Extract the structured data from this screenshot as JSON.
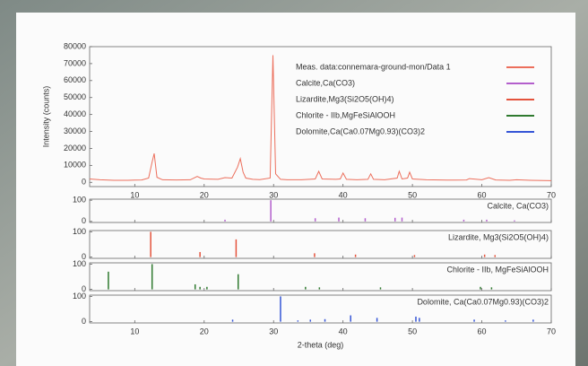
{
  "chart_data": [
    {
      "type": "line",
      "ylabel": "Intensity (counts)",
      "xlabel": "2-theta (deg)",
      "xlim": [
        3.5,
        70
      ],
      "ylim": [
        -2500,
        80000
      ],
      "xticks": [
        10,
        20,
        30,
        40,
        50,
        60,
        70
      ],
      "yticks": [
        0,
        10000,
        20000,
        30000,
        40000,
        50000,
        60000,
        70000,
        80000
      ],
      "x": [
        3.5,
        5,
        7,
        9,
        10,
        11,
        12,
        12.5,
        12.8,
        13.2,
        14,
        16,
        18,
        19,
        19.5,
        20,
        22,
        23,
        24,
        24.8,
        25.2,
        25.6,
        26,
        27,
        28,
        29.5,
        29.9,
        30.3,
        31,
        32,
        34,
        36,
        36.5,
        37,
        39,
        39.6,
        40,
        40.5,
        42,
        43.6,
        44,
        44.4,
        46,
        47.8,
        48.1,
        48.5,
        49.3,
        49.6,
        50,
        52,
        55,
        57.8,
        58.2,
        60,
        61,
        62,
        64,
        65,
        67,
        70
      ],
      "series": [
        {
          "name": "Meas. data:connemara-ground-mon/Data 1",
          "color": "#ec6f5c",
          "values": [
            2000,
            1500,
            1200,
            1200,
            1300,
            1400,
            2500,
            12000,
            17000,
            3000,
            1500,
            1400,
            1500,
            3500,
            2500,
            2000,
            1800,
            2800,
            2500,
            9000,
            14000,
            6000,
            2500,
            1800,
            1600,
            2500,
            75000,
            5000,
            1800,
            1500,
            1500,
            2000,
            6500,
            2000,
            1800,
            2000,
            5500,
            1800,
            1500,
            1800,
            5000,
            1800,
            1500,
            2500,
            6500,
            2000,
            2500,
            6000,
            2000,
            1500,
            1300,
            1400,
            2200,
            1500,
            2800,
            1400,
            1200,
            1500,
            1200,
            1000
          ]
        },
        {
          "name": "Calcite,Ca(CO3)",
          "color": "#b35fcc"
        },
        {
          "name": "Lizardite,Mg3(Si2O5(OH)4)",
          "color": "#e4533c"
        },
        {
          "name": "Chlorite - IIb,MgFeSiAlOOH",
          "color": "#2f7a2f"
        },
        {
          "name": "Dolomite,Ca(Ca0.07Mg0.93)(CO3)2",
          "color": "#3555d6"
        }
      ]
    },
    {
      "type": "stick",
      "name": "Calcite, Ca(CO3)",
      "color": "#b35fcc",
      "xlim": [
        3.5,
        70
      ],
      "ylim": [
        -5,
        105
      ],
      "xticks": [
        10,
        20,
        30,
        40,
        50,
        60,
        70
      ],
      "yticks": [
        0,
        100
      ],
      "xtick_labels": false,
      "x": [
        23,
        29.6,
        36,
        39.4,
        43.2,
        47.5,
        48.5,
        57.4,
        60.7,
        64.7
      ],
      "values": [
        8,
        100,
        15,
        18,
        15,
        17,
        18,
        8,
        8,
        5
      ]
    },
    {
      "type": "stick",
      "name": "Lizardite, Mg3(Si2O5(OH)4)",
      "color": "#e4533c",
      "xlim": [
        3.5,
        70
      ],
      "ylim": [
        -5,
        105
      ],
      "xticks": [
        10,
        20,
        30,
        40,
        50,
        60,
        70
      ],
      "yticks": [
        0,
        100
      ],
      "xtick_labels": false,
      "x": [
        12.3,
        19.4,
        24.6,
        35.9,
        41.8,
        50.3,
        60.4,
        61.9
      ],
      "values": [
        100,
        20,
        70,
        15,
        10,
        8,
        10,
        8
      ]
    },
    {
      "type": "stick",
      "name": "Chlorite - IIb, MgFeSiAlOOH",
      "color": "#2f7a2f",
      "xlim": [
        3.5,
        70
      ],
      "ylim": [
        -5,
        105
      ],
      "xticks": [
        10,
        20,
        30,
        40,
        50,
        60,
        70
      ],
      "yticks": [
        0,
        100
      ],
      "xtick_labels": false,
      "x": [
        6.2,
        12.5,
        18.7,
        19.4,
        20.4,
        24.9,
        34.6,
        36.6,
        45.4,
        59.8,
        61.4
      ],
      "values": [
        70,
        100,
        20,
        10,
        10,
        60,
        10,
        8,
        8,
        10,
        8
      ]
    },
    {
      "type": "stick",
      "name": "Dolomite, Ca(Ca0.07Mg0.93)(CO3)2",
      "color": "#3555d6",
      "xlim": [
        3.5,
        70
      ],
      "ylim": [
        -5,
        105
      ],
      "xticks": [
        10,
        20,
        30,
        40,
        50,
        60,
        70
      ],
      "yticks": [
        0,
        100
      ],
      "xtick_labels": true,
      "x": [
        24.1,
        31,
        33.5,
        35.3,
        37.4,
        41.1,
        44.9,
        50.5,
        51,
        58.9,
        63.4,
        67.4
      ],
      "values": [
        8,
        100,
        5,
        8,
        10,
        25,
        15,
        20,
        15,
        8,
        5,
        8
      ]
    }
  ]
}
